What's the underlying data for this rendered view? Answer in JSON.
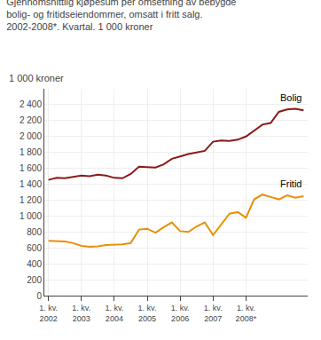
{
  "chart_data": {
    "type": "line",
    "title": "Gjennomsnittlig kjøpesum per omsetning av bebygde\nbolig- og fritidseiendommer, omsatt i fritt salg.\n2002-2008*. Kvartal. 1 000 kroner",
    "y_label": "1 000 kroner",
    "categories": [
      "1. kv.\n2002",
      null,
      null,
      null,
      "1. kv.\n2003",
      null,
      null,
      null,
      "1. kv.\n2004",
      null,
      null,
      null,
      "1. kv.\n2005",
      null,
      null,
      null,
      "1. kv.\n2006",
      null,
      null,
      null,
      "1. kv.\n2007",
      null,
      null,
      null,
      "1. kv.\n2008*",
      null,
      null,
      null,
      null,
      null,
      null,
      null
    ],
    "series": [
      {
        "name": "Bolig",
        "color": "#8B1A1A",
        "values": [
          1455,
          1480,
          1475,
          1490,
          1510,
          1500,
          1520,
          1510,
          1480,
          1475,
          1530,
          1620,
          1615,
          1610,
          1650,
          1720,
          1750,
          1780,
          1800,
          1820,
          1935,
          1950,
          1945,
          1960,
          2000,
          2080,
          2150,
          2170,
          2310,
          2340,
          2350,
          2330
        ]
      },
      {
        "name": "Fritid",
        "color": "#E8900A",
        "values": [
          690,
          685,
          680,
          660,
          625,
          615,
          620,
          635,
          640,
          645,
          660,
          830,
          840,
          790,
          860,
          920,
          810,
          800,
          870,
          920,
          760,
          900,
          1030,
          1050,
          980,
          1210,
          1270,
          1240,
          1210,
          1260,
          1230,
          1250
        ]
      }
    ],
    "ylim": [
      0,
      2600
    ],
    "yticks": [
      0,
      200,
      400,
      600,
      800,
      {
        "value": 1000,
        "label": "1 000"
      },
      {
        "value": 1200,
        "label": "1 200"
      },
      {
        "value": 1400,
        "label": "1 400"
      },
      {
        "value": 1600,
        "label": "1 600"
      },
      {
        "value": 1800,
        "label": "1 800"
      },
      {
        "value": 2000,
        "label": "2 000"
      },
      {
        "value": 2200,
        "label": "2 200"
      },
      {
        "value": 2400,
        "label": "2 400"
      }
    ],
    "grid": true
  }
}
